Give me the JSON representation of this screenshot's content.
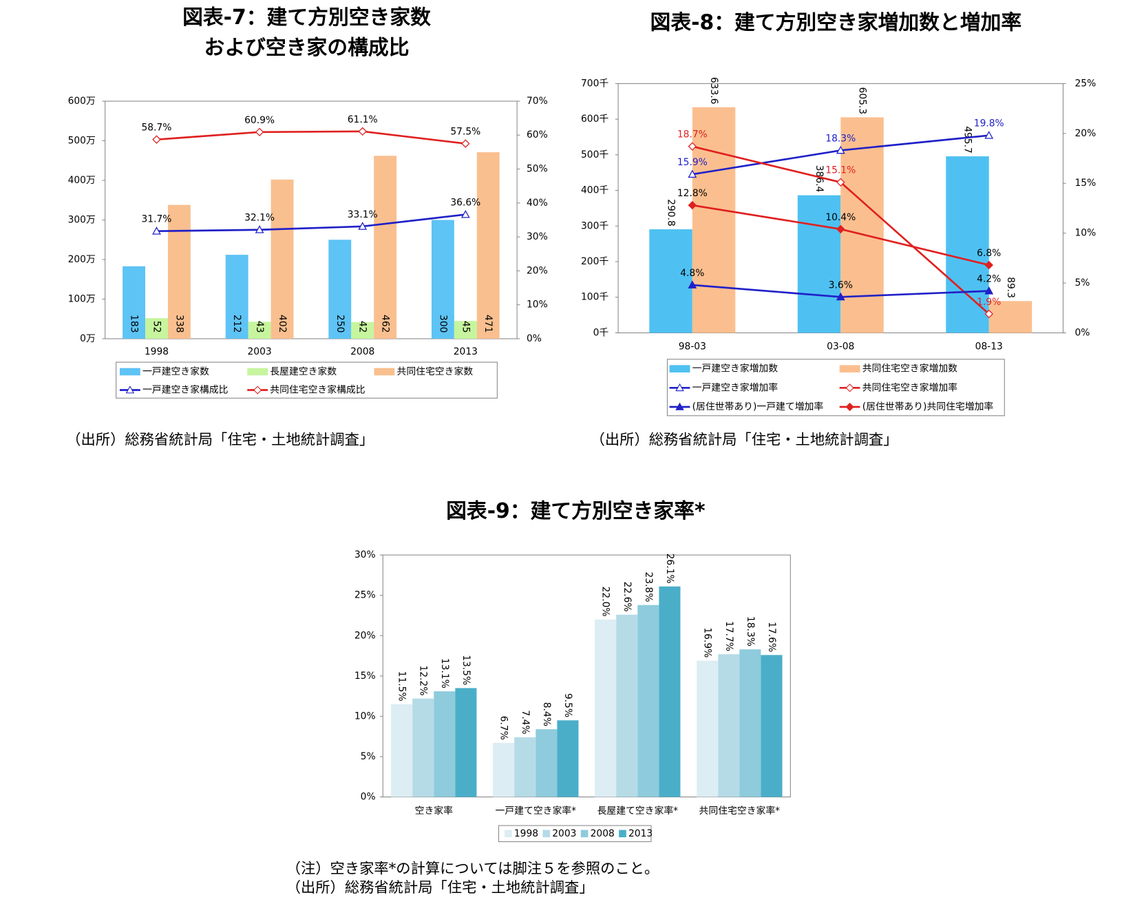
{
  "chart_data": [
    {
      "type": "bar",
      "title": [
        "図表-7：建て方別空き家数",
        "および空き家の構成比"
      ],
      "categories": [
        "1998",
        "2003",
        "2008",
        "2013"
      ],
      "series": [
        {
          "name": "一戸建空き家数",
          "color": "#5ec3f5",
          "values": [
            183,
            212,
            250,
            300
          ]
        },
        {
          "name": "長屋建空き家数",
          "color": "#c6f59e",
          "values": [
            52,
            43,
            42,
            45
          ]
        },
        {
          "name": "共同住宅空き家数",
          "color": "#f9bf8f",
          "values": [
            338,
            402,
            462,
            471
          ]
        },
        {
          "name": "一戸建空き家構成比",
          "type": "line",
          "axis": "y2",
          "color": "#2020c8",
          "marker": "triangle-open",
          "values": [
            31.7,
            32.1,
            33.1,
            36.6
          ],
          "value_labels": [
            "31.7%",
            "32.1%",
            "33.1%",
            "36.6%"
          ]
        },
        {
          "name": "共同住宅空き家構成比",
          "type": "line",
          "axis": "y2",
          "color": "#e02020",
          "marker": "diamond-open",
          "values": [
            58.7,
            60.9,
            61.1,
            57.5
          ],
          "value_labels": [
            "58.7%",
            "60.9%",
            "61.1%",
            "57.5%"
          ]
        }
      ],
      "ylim": [
        0,
        600
      ],
      "yticks": [
        {
          "value": 0,
          "label": "0万"
        },
        {
          "value": 100,
          "label": "100万"
        },
        {
          "value": 200,
          "label": "200万"
        },
        {
          "value": 300,
          "label": "300万"
        },
        {
          "value": 400,
          "label": "400万"
        },
        {
          "value": 500,
          "label": "500万"
        },
        {
          "value": 600,
          "label": "600万"
        }
      ],
      "y2lim": [
        0,
        70
      ],
      "y2ticks": [
        {
          "value": 0,
          "label": "0%"
        },
        {
          "value": 10,
          "label": "10%"
        },
        {
          "value": 20,
          "label": "20%"
        },
        {
          "value": 30,
          "label": "30%"
        },
        {
          "value": 40,
          "label": "40%"
        },
        {
          "value": 50,
          "label": "50%"
        },
        {
          "value": 60,
          "label": "60%"
        },
        {
          "value": 70,
          "label": "70%"
        }
      ],
      "grid": false,
      "legend": "bottom",
      "notes": [
        "（出所）総務省統計局「住宅・土地統計調査」"
      ]
    },
    {
      "type": "bar",
      "title": "図表-8：建て方別空き家増加数と増加率",
      "categories": [
        "98-03",
        "03-08",
        "08-13"
      ],
      "series": [
        {
          "name": "一戸建空き家増加数",
          "color": "#4ec1f2",
          "values": [
            290.8,
            386.4,
            495.7
          ]
        },
        {
          "name": "共同住宅空き家増加数",
          "color": "#fbbf8f",
          "values": [
            633.6,
            605.3,
            89.3
          ]
        },
        {
          "name": "一戸建空き家増加率",
          "type": "line",
          "axis": "y2",
          "color": "#2020c8",
          "marker": "triangle-open",
          "label_color": "#2020c8",
          "values": [
            15.9,
            18.3,
            19.8
          ],
          "value_labels": [
            "15.9%",
            "18.3%",
            "19.8%"
          ]
        },
        {
          "name": "共同住宅空き家増加率",
          "type": "line",
          "axis": "y2",
          "color": "#e02020",
          "marker": "diamond-open",
          "label_color": "#e02020",
          "values": [
            18.7,
            15.1,
            1.9
          ],
          "value_labels": [
            "18.7%",
            "15.1%",
            "1.9%"
          ]
        },
        {
          "name": "(居住世帯あり)一戸建て増加率",
          "type": "line",
          "axis": "y2",
          "color": "#2020c8",
          "marker": "triangle",
          "values": [
            4.8,
            3.6,
            4.2
          ],
          "value_labels": [
            "4.8%",
            "3.6%",
            "4.2%"
          ]
        },
        {
          "name": "(居住世帯あり)共同住宅増加率",
          "type": "line",
          "axis": "y2",
          "color": "#e02020",
          "marker": "diamond",
          "values": [
            12.8,
            10.4,
            6.8
          ],
          "value_labels": [
            "12.8%",
            "10.4%",
            "6.8%"
          ]
        }
      ],
      "ylim": [
        0,
        700
      ],
      "yticks": [
        {
          "value": 0,
          "label": "0千"
        },
        {
          "value": 100,
          "label": "100千"
        },
        {
          "value": 200,
          "label": "200千"
        },
        {
          "value": 300,
          "label": "300千"
        },
        {
          "value": 400,
          "label": "400千"
        },
        {
          "value": 500,
          "label": "500千"
        },
        {
          "value": 600,
          "label": "600千"
        },
        {
          "value": 700,
          "label": "700千"
        }
      ],
      "y2lim": [
        0,
        25
      ],
      "y2ticks": [
        {
          "value": 0,
          "label": "0%"
        },
        {
          "value": 5,
          "label": "5%"
        },
        {
          "value": 10,
          "label": "10%"
        },
        {
          "value": 15,
          "label": "15%"
        },
        {
          "value": 20,
          "label": "20%"
        },
        {
          "value": 25,
          "label": "25%"
        }
      ],
      "grid": false,
      "legend": "bottom",
      "notes": [
        "（出所）総務省統計局「住宅・土地統計調査」"
      ]
    },
    {
      "type": "bar",
      "title": "図表-9：建て方別空き家率*",
      "categories": [
        "空き家率",
        "一戸建て空き家率*",
        "長屋建て空き家率*",
        "共同住宅空き家率*"
      ],
      "series": [
        {
          "name": "1998",
          "color": "#dcedf3",
          "values": [
            11.5,
            6.7,
            22.0,
            16.9
          ],
          "value_labels": [
            "11.5%",
            "6.7%",
            "22.0%",
            "16.9%"
          ]
        },
        {
          "name": "2003",
          "color": "#b5dbe7",
          "values": [
            12.2,
            7.4,
            22.6,
            17.7
          ],
          "value_labels": [
            "12.2%",
            "7.4%",
            "22.6%",
            "17.7%"
          ]
        },
        {
          "name": "2008",
          "color": "#8ecbdc",
          "values": [
            13.1,
            8.4,
            23.8,
            18.3
          ],
          "value_labels": [
            "13.1%",
            "8.4%",
            "23.8%",
            "18.3%"
          ]
        },
        {
          "name": "2013",
          "color": "#4aaec9",
          "values": [
            13.5,
            9.5,
            26.1,
            17.6
          ],
          "value_labels": [
            "13.5%",
            "9.5%",
            "26.1%",
            "17.6%"
          ]
        }
      ],
      "ylim": [
        0,
        30
      ],
      "yticks": [
        {
          "value": 0,
          "label": "0%"
        },
        {
          "value": 5,
          "label": "5%"
        },
        {
          "value": 10,
          "label": "10%"
        },
        {
          "value": 15,
          "label": "15%"
        },
        {
          "value": 20,
          "label": "20%"
        },
        {
          "value": 25,
          "label": "25%"
        },
        {
          "value": 30,
          "label": "30%"
        }
      ],
      "grid": false,
      "legend": "bottom",
      "notes": [
        "（注）空き家率*の計算については脚注５を参照のこと。",
        "（出所）総務省統計局「住宅・土地統計調査」"
      ]
    }
  ]
}
